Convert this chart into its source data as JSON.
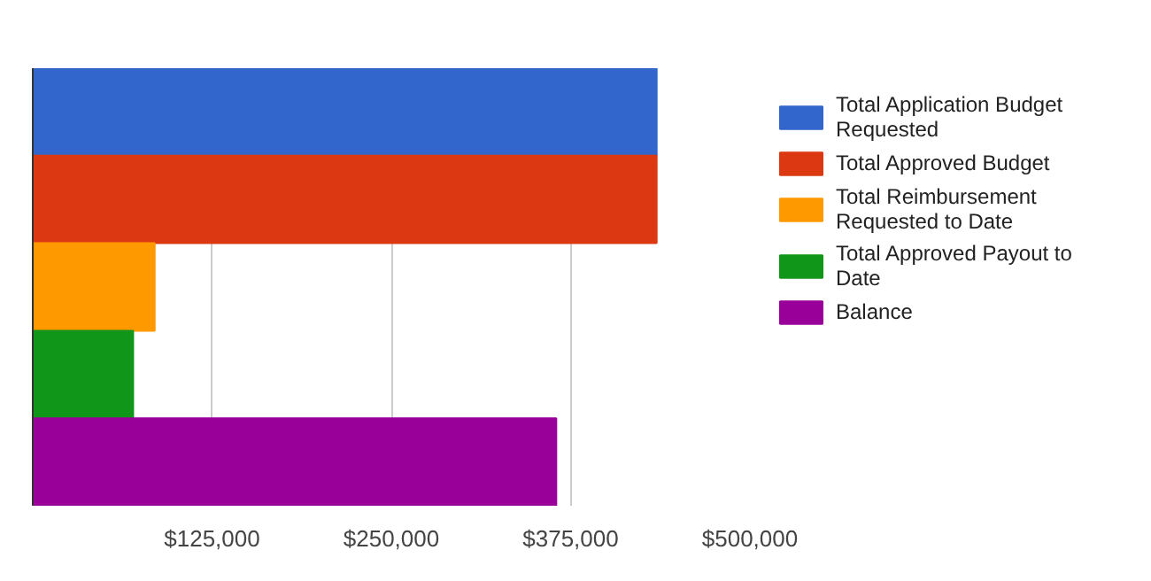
{
  "chart_data": {
    "type": "bar",
    "orientation": "horizontal",
    "categories": [
      null,
      null,
      null,
      null,
      null
    ],
    "series": [
      {
        "name": "Total Application Budget Requested",
        "color": "#3366cc",
        "values": [
          435000,
          null,
          null,
          null,
          null
        ]
      },
      {
        "name": "Total Approved Budget",
        "color": "#dc3912",
        "values": [
          null,
          435000,
          null,
          null,
          null
        ]
      },
      {
        "name": "Total Reimbursement Requested to Date",
        "color": "#ff9900",
        "values": [
          null,
          null,
          85000,
          null,
          null
        ]
      },
      {
        "name": "Total Approved Payout to Date",
        "color": "#109618",
        "values": [
          null,
          null,
          null,
          70000,
          null
        ]
      },
      {
        "name": "Balance",
        "color": "#990099",
        "values": [
          null,
          null,
          null,
          null,
          365000
        ]
      }
    ],
    "xlim": [
      0,
      500000
    ],
    "xticks": [
      {
        "value": 125000,
        "label": "$125,000"
      },
      {
        "value": 250000,
        "label": "$250,000"
      },
      {
        "value": 375000,
        "label": "$375,000"
      },
      {
        "value": 500000,
        "label": "$500,000"
      }
    ],
    "grid": "x",
    "legend": "right"
  }
}
